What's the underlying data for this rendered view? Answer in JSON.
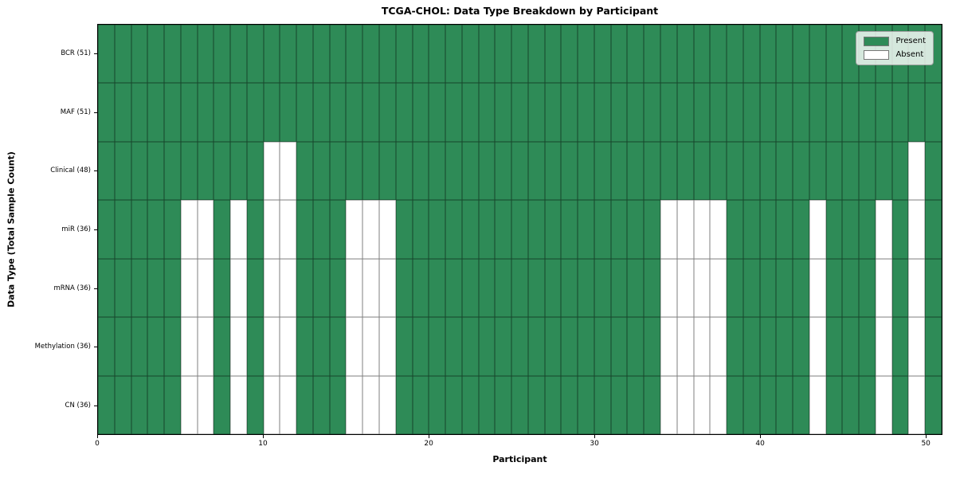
{
  "title": "TCGA-CHOL: Data Type Breakdown by Participant",
  "chart_data": {
    "type": "heatmap",
    "title": "TCGA-CHOL: Data Type Breakdown by Participant",
    "xlabel": "Participant",
    "ylabel": "Data Type (Total Sample Count)",
    "x_range": [
      0,
      51
    ],
    "n_participants": 51,
    "x_ticks": [
      0,
      10,
      20,
      30,
      40,
      50
    ],
    "legend_position": "upper right",
    "grid": true,
    "legend": [
      {
        "label": "Present",
        "color": "#2e8b57"
      },
      {
        "label": "Absent",
        "color": "#ffffff"
      }
    ],
    "colors": {
      "present": "#2e8b57",
      "absent": "#ffffff",
      "grid_line": "rgba(0,0,0,0.5)"
    },
    "rows": [
      {
        "label": "BCR (51)",
        "total_samples": 51,
        "absent_participants": []
      },
      {
        "label": "MAF (51)",
        "total_samples": 51,
        "absent_participants": []
      },
      {
        "label": "Clinical (48)",
        "total_samples": 48,
        "absent_participants": [
          10,
          11,
          49
        ]
      },
      {
        "label": "miR (36)",
        "total_samples": 36,
        "absent_participants": [
          5,
          6,
          8,
          10,
          11,
          15,
          16,
          17,
          34,
          35,
          36,
          37,
          43,
          47,
          49
        ]
      },
      {
        "label": "mRNA (36)",
        "total_samples": 36,
        "absent_participants": [
          5,
          6,
          8,
          10,
          11,
          15,
          16,
          17,
          34,
          35,
          36,
          37,
          43,
          47,
          49
        ]
      },
      {
        "label": "Methylation (36)",
        "total_samples": 36,
        "absent_participants": [
          5,
          6,
          8,
          10,
          11,
          15,
          16,
          17,
          34,
          35,
          36,
          37,
          43,
          47,
          49
        ]
      },
      {
        "label": "CN (36)",
        "total_samples": 36,
        "absent_participants": [
          5,
          6,
          8,
          10,
          11,
          15,
          16,
          17,
          34,
          35,
          36,
          37,
          43,
          47,
          49
        ]
      }
    ]
  }
}
